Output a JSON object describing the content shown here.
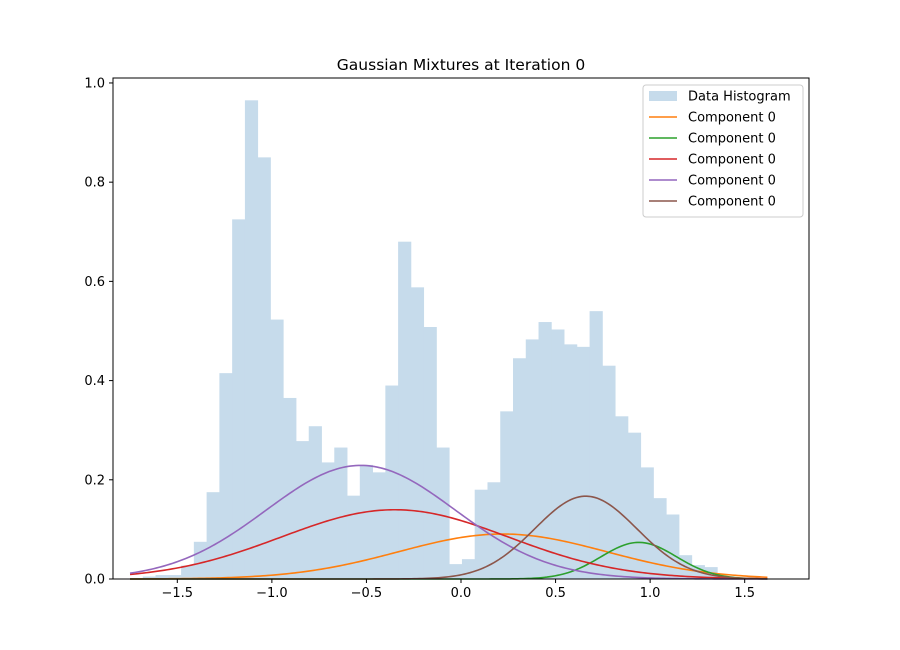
{
  "chart_data": {
    "type": "bar",
    "title": "Gaussian Mixtures at Iteration 0",
    "xlabel": "",
    "ylabel": "",
    "xlim": [
      -1.84,
      1.84
    ],
    "ylim": [
      0,
      1.01
    ],
    "x_ticks": [
      -1.5,
      -1.0,
      -0.5,
      0.0,
      0.5,
      1.0,
      1.5
    ],
    "x_tick_labels": [
      "−1.5",
      "−1.0",
      "−0.5",
      "0.0",
      "0.5",
      "1.0",
      "1.5"
    ],
    "y_ticks": [
      0.0,
      0.2,
      0.4,
      0.6,
      0.8,
      1.0
    ],
    "y_tick_labels": [
      "0.0",
      "0.2",
      "0.4",
      "0.6",
      "0.8",
      "1.0"
    ],
    "grid": false,
    "legend_position": "top-right",
    "histogram": {
      "name": "Data Histogram",
      "color": "#c6dbeb",
      "bin_start": -1.75,
      "bin_width": 0.0675,
      "values": [
        0.0,
        0.005,
        0.008,
        0.008,
        0.027,
        0.075,
        0.175,
        0.415,
        0.725,
        0.965,
        0.85,
        0.523,
        0.365,
        0.278,
        0.308,
        0.235,
        0.265,
        0.168,
        0.23,
        0.215,
        0.39,
        0.68,
        0.588,
        0.508,
        0.265,
        0.03,
        0.04,
        0.18,
        0.195,
        0.338,
        0.445,
        0.483,
        0.518,
        0.503,
        0.473,
        0.468,
        0.54,
        0.43,
        0.328,
        0.295,
        0.225,
        0.163,
        0.13,
        0.048,
        0.028,
        0.024,
        0.0
      ]
    },
    "series": [
      {
        "name": "Component 0",
        "color": "#ff7f0e",
        "mean": 0.22,
        "std": 0.55,
        "weight": 0.125
      },
      {
        "name": "Component 0",
        "color": "#2ca02c",
        "mean": 0.94,
        "std": 0.2,
        "weight": 0.037
      },
      {
        "name": "Component 0",
        "color": "#d62728",
        "mean": -0.35,
        "std": 0.6,
        "weight": 0.21
      },
      {
        "name": "Component 0",
        "color": "#9467bd",
        "mean": -0.53,
        "std": 0.5,
        "weight": 0.287
      },
      {
        "name": "Component 0",
        "color": "#8c564b",
        "mean": 0.66,
        "std": 0.27,
        "weight": 0.113
      }
    ],
    "curve_x_range": [
      -1.75,
      1.62
    ]
  }
}
